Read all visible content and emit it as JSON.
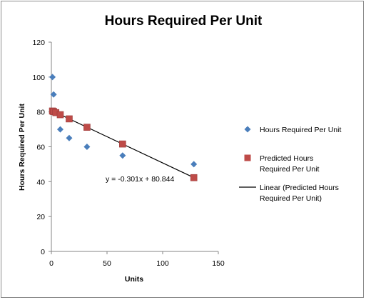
{
  "chart_data": {
    "type": "scatter",
    "title": "Hours Required Per Unit",
    "xlabel": "Units",
    "ylabel": "Hours Required Per Unit",
    "xlim": [
      0,
      150
    ],
    "ylim": [
      0,
      120
    ],
    "xticks": [
      0,
      50,
      100,
      150
    ],
    "yticks": [
      0,
      20,
      40,
      60,
      80,
      100,
      120
    ],
    "grid": false,
    "legend_position": "right",
    "series": [
      {
        "name": "Hours Required Per Unit",
        "marker": "diamond",
        "color": "#4A7EBB",
        "x": [
          1,
          2,
          4,
          8,
          16,
          32,
          64,
          128
        ],
        "y": [
          100,
          90,
          80,
          70,
          65,
          60,
          55,
          50
        ]
      },
      {
        "name": "Predicted Hours Required Per Unit",
        "name_lines": [
          "Predicted Hours",
          "Required Per Unit"
        ],
        "marker": "square",
        "color": "#BE4B48",
        "x": [
          1,
          2,
          4,
          8,
          16,
          32,
          64,
          128
        ],
        "y": [
          80.5,
          80.2,
          79.6,
          78.4,
          76.0,
          71.2,
          61.6,
          42.3
        ]
      }
    ],
    "trendline": {
      "name": "Linear (Predicted Hours Required Per Unit)",
      "name_lines": [
        "Linear (Predicted Hours",
        "Required Per Unit)"
      ],
      "color": "#000000",
      "slope": -0.301,
      "intercept": 80.844,
      "x_range": [
        1,
        128
      ],
      "equation_label": "y = -0.301x + 80.844"
    }
  }
}
